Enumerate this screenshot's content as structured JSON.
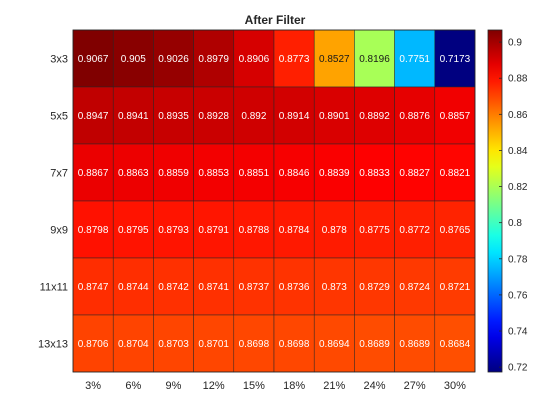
{
  "chart_data": {
    "type": "heatmap",
    "title": "After Filter",
    "x_categories": [
      "3%",
      "6%",
      "9%",
      "12%",
      "15%",
      "18%",
      "21%",
      "24%",
      "27%",
      "30%"
    ],
    "y_categories": [
      "3x3",
      "5x5",
      "7x7",
      "9x9",
      "11x11",
      "13x13"
    ],
    "values": [
      [
        "0.9067",
        "0.905",
        "0.9026",
        "0.8979",
        "0.8906",
        "0.8773",
        "0.8527",
        "0.8196",
        "0.7751",
        "0.7173"
      ],
      [
        "0.8947",
        "0.8941",
        "0.8935",
        "0.8928",
        "0.892",
        "0.8914",
        "0.8901",
        "0.8892",
        "0.8876",
        "0.8857"
      ],
      [
        "0.8867",
        "0.8863",
        "0.8859",
        "0.8853",
        "0.8851",
        "0.8846",
        "0.8839",
        "0.8833",
        "0.8827",
        "0.8821"
      ],
      [
        "0.8798",
        "0.8795",
        "0.8793",
        "0.8791",
        "0.8788",
        "0.8784",
        "0.878",
        "0.8775",
        "0.8772",
        "0.8765"
      ],
      [
        "0.8747",
        "0.8744",
        "0.8742",
        "0.8741",
        "0.8737",
        "0.8736",
        "0.873",
        "0.8729",
        "0.8724",
        "0.8721"
      ],
      [
        "0.8706",
        "0.8704",
        "0.8703",
        "0.8701",
        "0.8698",
        "0.8698",
        "0.8694",
        "0.8689",
        "0.8689",
        "0.8684"
      ]
    ],
    "colormap": "jet",
    "color_range": [
      0.7173,
      0.9067
    ],
    "colorbar_ticks": [
      "0.72",
      "0.74",
      "0.76",
      "0.78",
      "0.8",
      "0.82",
      "0.84",
      "0.86",
      "0.88",
      "0.9"
    ],
    "grid": true
  }
}
